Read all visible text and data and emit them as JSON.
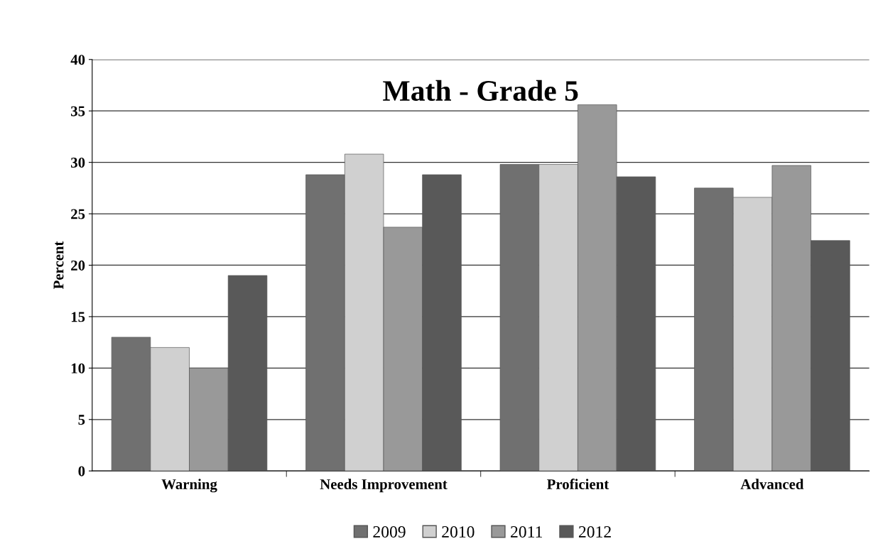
{
  "chart_data": {
    "type": "bar",
    "title": "Math - Grade 5",
    "ylabel": "Percent",
    "categories": [
      "Warning",
      "Needs Improvement",
      "Proficient",
      "Advanced"
    ],
    "series": [
      {
        "name": "2009",
        "color": "#707070",
        "values": [
          13,
          28.8,
          29.8,
          27.5
        ]
      },
      {
        "name": "2010",
        "color": "#d0d0d0",
        "values": [
          12,
          30.8,
          29.8,
          26.6
        ]
      },
      {
        "name": "2011",
        "color": "#999999",
        "values": [
          10,
          23.7,
          35.6,
          29.7
        ]
      },
      {
        "name": "2012",
        "color": "#595959",
        "values": [
          19,
          28.8,
          28.6,
          22.4
        ]
      }
    ],
    "ylim": [
      0,
      40
    ],
    "yticks": [
      0,
      5,
      10,
      15,
      20,
      25,
      30,
      35,
      40
    ],
    "grid": "y",
    "legend": "bottom"
  }
}
